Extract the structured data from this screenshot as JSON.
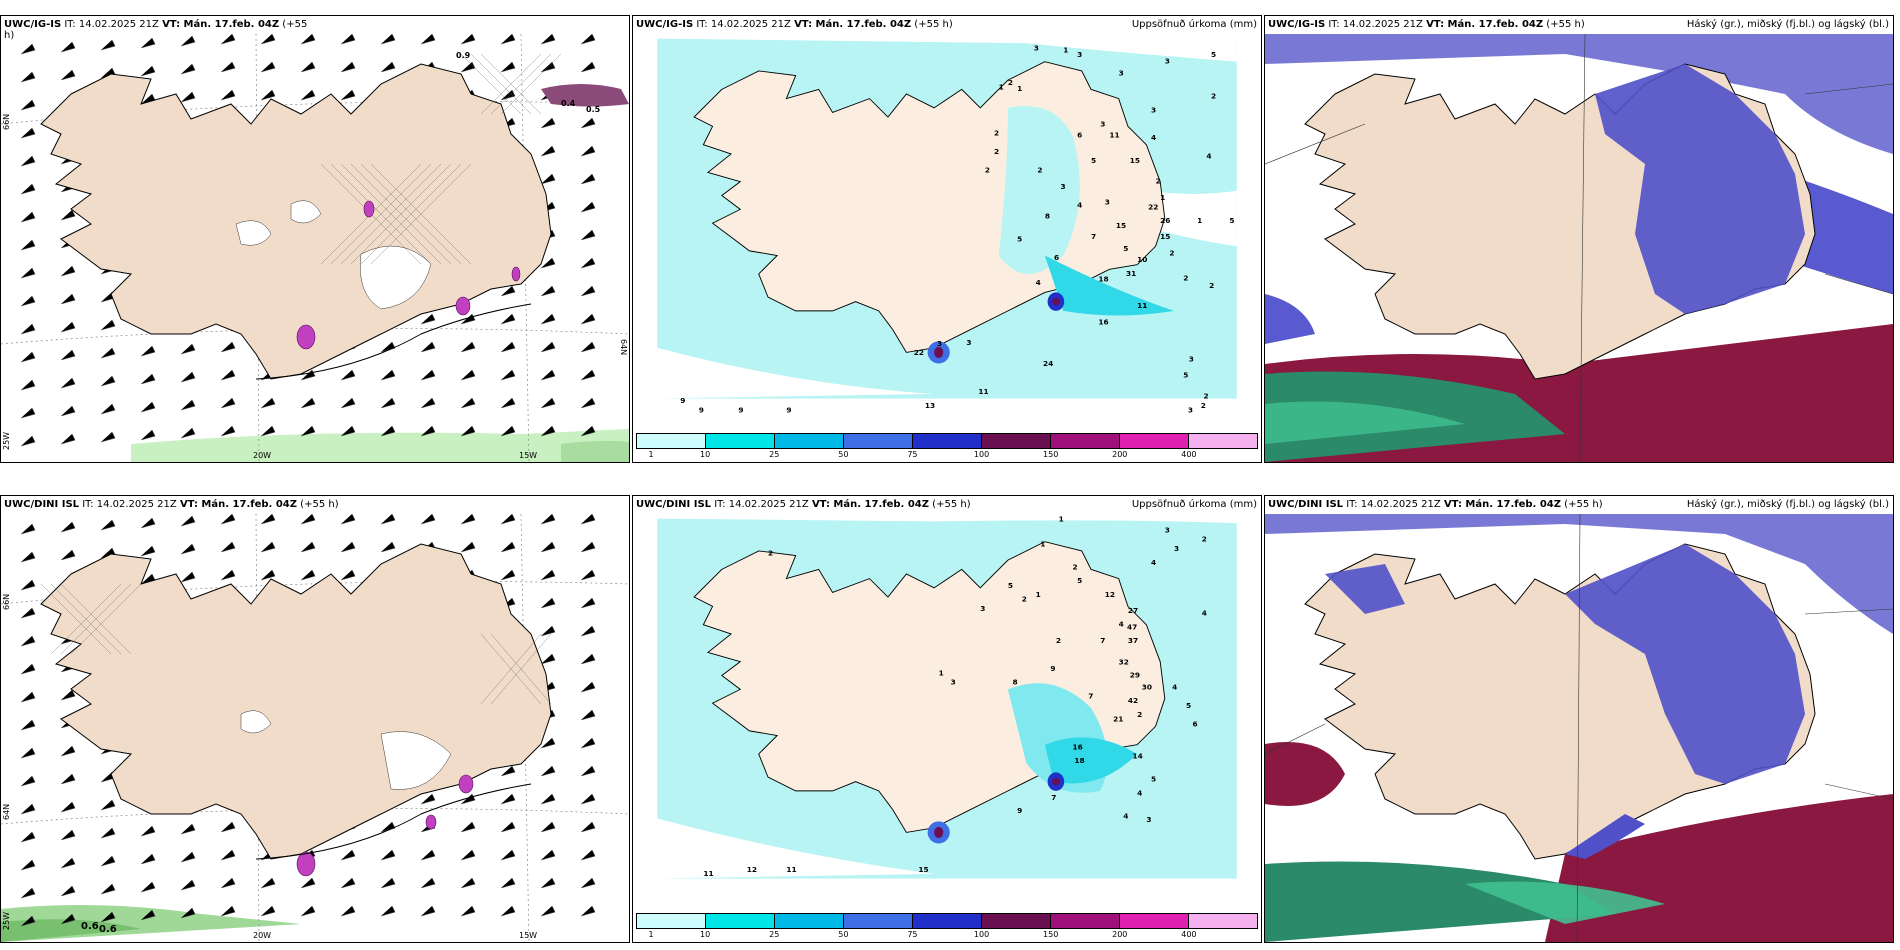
{
  "panels": [
    {
      "title_prefix": "UWC/IG-IS",
      "title_it": "IT: 14.02.2025 21Z",
      "title_vt": "VT: Mán. 17.feb. 04Z",
      "title_lead": "(+55",
      "title_suffix": "h)",
      "right_title": ""
    },
    {
      "title_prefix": "UWC/IG-IS",
      "title_it": "IT: 14.02.2025 21Z",
      "title_vt": "VT: Mán. 17.feb. 04Z",
      "title_lead": "(+55 h)",
      "right_title": "Uppsöfnuð úrkoma (mm)"
    },
    {
      "title_prefix": "UWC/IG-IS",
      "title_it": "IT: 14.02.2025 21Z",
      "title_vt": "VT: Mán. 17.feb. 04Z",
      "title_lead": "(+55 h)",
      "right_title": "Háský (gr.), miðský (fj.bl.) og lágský (bl.)"
    },
    {
      "title_prefix": "UWC/DINI ISL",
      "title_it": "IT: 14.02.2025 21Z",
      "title_vt": "VT: Mán. 17.feb. 04Z",
      "title_lead": "(+55 h)",
      "right_title": ""
    },
    {
      "title_prefix": "UWC/DINI ISL",
      "title_it": "IT: 14.02.2025 21Z",
      "title_vt": "VT: Mán. 17.feb. 04Z",
      "title_lead": "(+55 h)",
      "right_title": "Uppsöfnuð úrkoma (mm)"
    },
    {
      "title_prefix": "UWC/DINI ISL",
      "title_it": "IT: 14.02.2025 21Z",
      "title_vt": "VT: Mán. 17.feb. 04Z",
      "title_lead": "(+55 h)",
      "right_title": "Háský (gr.), miðský (fj.bl.) og lágský (bl.)"
    }
  ],
  "axis_labels": {
    "lon_20w": "20W",
    "lon_15w": "15W",
    "lon_25w": "25W",
    "lat_66n": "66N",
    "lat_64n": "64N"
  },
  "colorbar": {
    "labels": [
      "1",
      "10",
      "25",
      "50",
      "75",
      "100",
      "150",
      "200",
      "400"
    ],
    "colors": [
      "#ccfcfc",
      "#00e5e5",
      "#00b8e6",
      "#3f6fe6",
      "#2030c8",
      "#6a1050",
      "#a0107a",
      "#e020b0",
      "#f5b0f0"
    ]
  },
  "precip_top_numbers": [
    "3",
    "1",
    "3",
    "3",
    "5",
    "2",
    "3",
    "1",
    "1",
    "2",
    "3",
    "3",
    "2",
    "6",
    "11",
    "4",
    "2",
    "5",
    "15",
    "4",
    "2",
    "2",
    "2",
    "1",
    "5",
    "3",
    "22",
    "26",
    "15",
    "1",
    "3",
    "4",
    "8",
    "5",
    "7",
    "15",
    "5",
    "2",
    "6",
    "10",
    "2",
    "31",
    "18",
    "2",
    "4",
    "11",
    "16",
    "3",
    "3",
    "24",
    "5",
    "11",
    "13",
    "2",
    "3",
    "9",
    "9",
    "9",
    "9",
    "22",
    "3",
    "2"
  ],
  "precip_bottom_numbers": [
    "1",
    "2",
    "3",
    "2",
    "3",
    "1",
    "2",
    "4",
    "5",
    "5",
    "12",
    "27",
    "2",
    "3",
    "1",
    "4",
    "47",
    "37",
    "7",
    "4",
    "2",
    "32",
    "29",
    "8",
    "9",
    "30",
    "42",
    "2",
    "7",
    "4",
    "21",
    "5",
    "6",
    "16",
    "18",
    "14",
    "5",
    "4",
    "7",
    "9",
    "4",
    "3",
    "11",
    "12",
    "11",
    "15",
    "1",
    "3"
  ],
  "wind_numbers_top": [
    "0.9",
    "0.4",
    "0.5"
  ],
  "wind_numbers_bottom": [
    "0.6",
    "0.6"
  ]
}
